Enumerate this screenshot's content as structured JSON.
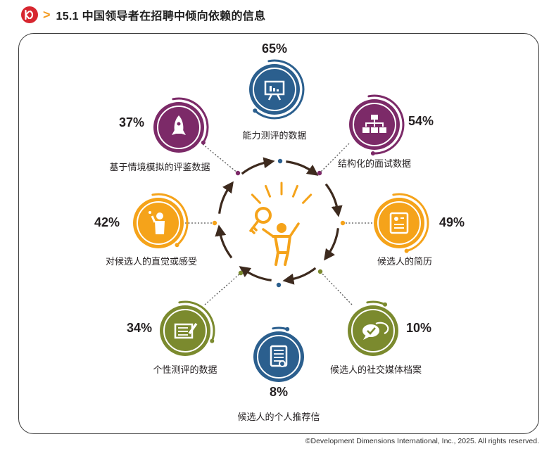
{
  "header": {
    "title": "15.1 中国领导者在招聘中倾向依赖的信息"
  },
  "footer": {
    "copyright": "©Development Dimensions International, Inc., 2025. All rights reserved."
  },
  "colors": {
    "blue": "#2b5f8e",
    "purple": "#7c2a68",
    "orange": "#f5a31a",
    "olive": "#7b8a2e",
    "arrow": "#3d2a1e",
    "icon_bg": "#ffffff"
  },
  "chart_data": {
    "type": "radial-infographic",
    "title": "15.1 中国领导者在招聘中倾向依赖的信息",
    "items": [
      {
        "label": "能力测评的数据",
        "value": 65,
        "value_text": "65%",
        "color": "#2b5f8e",
        "icon": "presentation-board-icon"
      },
      {
        "label": "结构化的面试数据",
        "value": 54,
        "value_text": "54%",
        "color": "#7c2a68",
        "icon": "org-chart-icon"
      },
      {
        "label": "候选人的简历",
        "value": 49,
        "value_text": "49%",
        "color": "#f5a31a",
        "icon": "resume-icon"
      },
      {
        "label": "候选人的社交媒体档案",
        "value": 10,
        "value_text": "10%",
        "color": "#7b8a2e",
        "icon": "chat-bubbles-icon"
      },
      {
        "label": "候选人的个人推荐信",
        "value": 8,
        "value_text": "8%",
        "color": "#2b5f8e",
        "icon": "letter-scroll-icon"
      },
      {
        "label": "个性测评的数据",
        "value": 34,
        "value_text": "34%",
        "color": "#7b8a2e",
        "icon": "notepad-pen-icon"
      },
      {
        "label": "对候选人的直觉或感受",
        "value": 42,
        "value_text": "42%",
        "color": "#f5a31a",
        "icon": "thinking-person-icon"
      },
      {
        "label": "基于情境模拟的评鉴数据",
        "value": 37,
        "value_text": "37%",
        "color": "#7c2a68",
        "icon": "rocket-icon"
      }
    ],
    "center_icon": "person-with-key-icon"
  }
}
